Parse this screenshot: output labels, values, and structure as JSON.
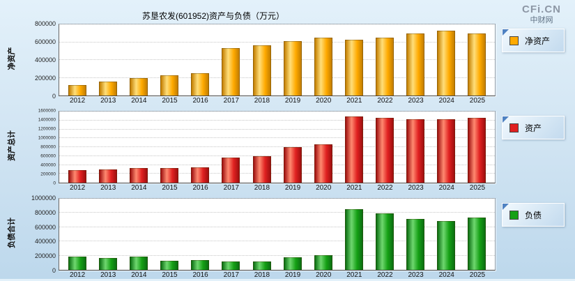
{
  "header": {
    "title": "苏垦农发(601952)资产与负债（万元）",
    "logo": "CFi.CN",
    "logo_sub": "中财网"
  },
  "chart_data": [
    {
      "type": "bar",
      "title": "净资产",
      "ylabel": "净资产",
      "legend": "净资产",
      "categories": [
        "2012",
        "2013",
        "2014",
        "2015",
        "2016",
        "2017",
        "2018",
        "2019",
        "2020",
        "2021",
        "2022",
        "2023",
        "2024",
        "2025"
      ],
      "values": [
        120000,
        160000,
        195000,
        225000,
        255000,
        530000,
        565000,
        610000,
        650000,
        630000,
        655000,
        700000,
        730000,
        700000
      ],
      "ylim": [
        0,
        800000
      ],
      "yticks": [
        0,
        200000,
        400000,
        600000,
        800000
      ],
      "grid": true,
      "legend_position": "right",
      "bar_colors": {
        "main": "#FFAA00",
        "light": "#FFDE7A",
        "dark": "#C37E00"
      }
    },
    {
      "type": "bar",
      "title": "资产总计",
      "ylabel": "资产总计",
      "legend": "资产",
      "categories": [
        "2012",
        "2013",
        "2014",
        "2015",
        "2016",
        "2017",
        "2018",
        "2019",
        "2020",
        "2021",
        "2022",
        "2023",
        "2024",
        "2025"
      ],
      "values": [
        290000,
        305000,
        325000,
        335000,
        345000,
        560000,
        590000,
        795000,
        860000,
        1490000,
        1460000,
        1425000,
        1425000,
        1455000
      ],
      "ylim": [
        0,
        1600000
      ],
      "yticks": [
        0,
        200000,
        400000,
        600000,
        800000,
        1000000,
        1200000,
        1400000,
        1600000
      ],
      "grid": true,
      "legend_position": "right",
      "bar_colors": {
        "main": "#E02020",
        "light": "#FF8A70",
        "dark": "#9E1010"
      }
    },
    {
      "type": "bar",
      "title": "负债合计",
      "ylabel": "负债合计",
      "legend": "负债",
      "categories": [
        "2012",
        "2013",
        "2014",
        "2015",
        "2016",
        "2017",
        "2018",
        "2019",
        "2020",
        "2021",
        "2022",
        "2023",
        "2024",
        "2025"
      ],
      "values": [
        190000,
        165000,
        185000,
        130000,
        135000,
        120000,
        120000,
        175000,
        210000,
        850000,
        795000,
        720000,
        690000,
        740000
      ],
      "ylim": [
        0,
        1000000
      ],
      "yticks": [
        0,
        200000,
        400000,
        600000,
        800000,
        1000000
      ],
      "grid": true,
      "legend_position": "right",
      "bar_colors": {
        "main": "#15A015",
        "light": "#6FD76F",
        "dark": "#0B6E12"
      }
    }
  ]
}
